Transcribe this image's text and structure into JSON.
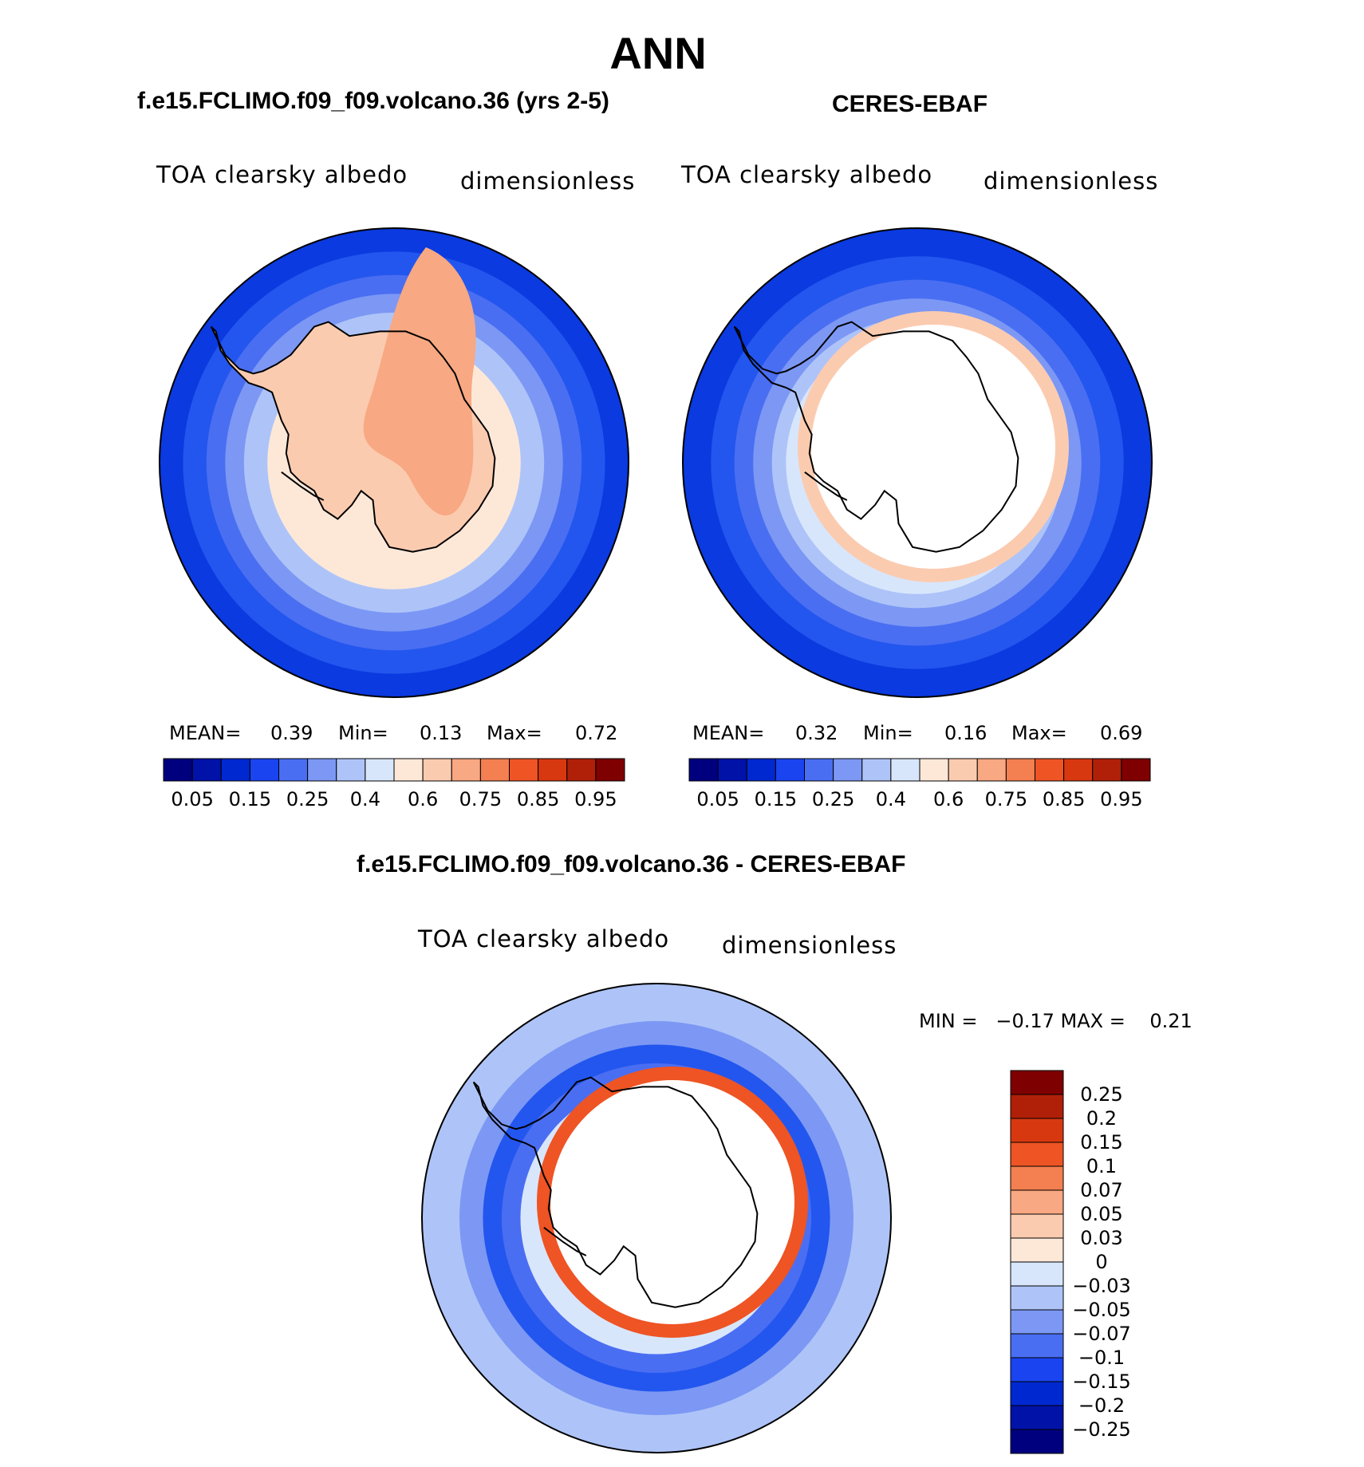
{
  "figure": {
    "season_title": "ANN",
    "panels": [
      {
        "title": "f.e15.FCLIMO.f09_f09.volcano.36 (yrs 2-5)",
        "variable": "TOA clearsky albedo",
        "units": "dimensionless",
        "mean_label": "MEAN=",
        "mean_value": "0.39",
        "min_label": "Min=",
        "min_value": "0.13",
        "max_label": "Max=",
        "max_value": "0.72"
      },
      {
        "title": "CERES-EBAF",
        "variable": "TOA clearsky albedo",
        "units": "dimensionless",
        "mean_label": "MEAN=",
        "mean_value": "0.32",
        "min_label": "Min=",
        "min_value": "0.16",
        "max_label": "Max=",
        "max_value": "0.69"
      },
      {
        "title": "f.e15.FCLIMO.f09_f09.volcano.36 - CERES-EBAF",
        "variable": "TOA clearsky albedo",
        "units": "dimensionless",
        "minmax_text": "MIN =   −0.17 MAX =    0.21"
      }
    ]
  },
  "colors": {
    "abs_scale": [
      "#00007f",
      "#0012a8",
      "#0028d0",
      "#1a44f0",
      "#4a6ef2",
      "#7c98f4",
      "#aec4f8",
      "#d8e6fc",
      "#fde8d8",
      "#fbcbb0",
      "#f8a882",
      "#f47f50",
      "#ee5424",
      "#d83810",
      "#b02008",
      "#7f0000"
    ],
    "diff_scale": [
      "#00007f",
      "#0012a8",
      "#0028d0",
      "#1a44f0",
      "#4a6ef2",
      "#7c98f4",
      "#aec4f8",
      "#d8e6fc",
      "#fde8d8",
      "#fbcbb0",
      "#f8a882",
      "#f47f50",
      "#ee5424",
      "#d83810",
      "#b02008",
      "#7f0000"
    ],
    "ocean_deep": "#0a3ae0",
    "ocean_mid": "#2356ee",
    "ocean_light": "#aec4f8",
    "ice_peach": "#fbcbb0",
    "ice_dark": "#f8a882",
    "coast": "#000000"
  },
  "chart_data": [
    {
      "type": "heatmap",
      "title": "f.e15.FCLIMO.f09_f09.volcano.36 (yrs 2-5)",
      "variable": "TOA clearsky albedo",
      "units": "dimensionless",
      "projection": "south-polar-stereographic",
      "stats": {
        "mean": 0.39,
        "min": 0.13,
        "max": 0.72
      },
      "colorbar_levels": [
        0.05,
        0.1,
        0.15,
        0.2,
        0.25,
        0.3,
        0.4,
        0.5,
        0.6,
        0.7,
        0.75,
        0.8,
        0.85,
        0.9,
        0.95
      ],
      "colorbar_tick_labels": [
        "0.05",
        "0.15",
        "0.25",
        "0.4",
        "0.6",
        "0.75",
        "0.85",
        "0.95"
      ]
    },
    {
      "type": "heatmap",
      "title": "CERES-EBAF",
      "variable": "TOA clearsky albedo",
      "units": "dimensionless",
      "projection": "south-polar-stereographic",
      "stats": {
        "mean": 0.32,
        "min": 0.16,
        "max": 0.69
      },
      "colorbar_levels": [
        0.05,
        0.1,
        0.15,
        0.2,
        0.25,
        0.3,
        0.4,
        0.5,
        0.6,
        0.7,
        0.75,
        0.8,
        0.85,
        0.9,
        0.95
      ],
      "colorbar_tick_labels": [
        "0.05",
        "0.15",
        "0.25",
        "0.4",
        "0.6",
        "0.75",
        "0.85",
        "0.95"
      ]
    },
    {
      "type": "heatmap",
      "title": "f.e15.FCLIMO.f09_f09.volcano.36 - CERES-EBAF",
      "variable": "TOA clearsky albedo",
      "units": "dimensionless",
      "projection": "south-polar-stereographic",
      "stats": {
        "min": -0.17,
        "max": 0.21
      },
      "colorbar_levels": [
        0.25,
        0.2,
        0.15,
        0.1,
        0.07,
        0.05,
        0.03,
        0,
        -0.03,
        -0.05,
        -0.07,
        -0.1,
        -0.15,
        -0.2,
        -0.25
      ],
      "colorbar_tick_labels": [
        "0.25",
        "0.2",
        "0.15",
        "0.1",
        "0.07",
        "0.05",
        "0.03",
        "0",
        "−0.03",
        "−0.05",
        "−0.07",
        "−0.1",
        "−0.15",
        "−0.2",
        "−0.25"
      ]
    }
  ]
}
